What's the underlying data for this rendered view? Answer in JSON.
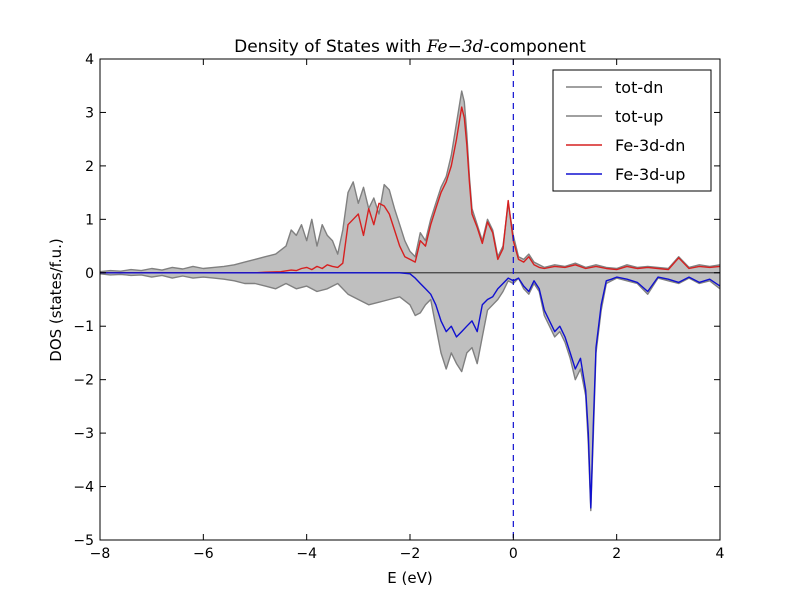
{
  "chart_data": {
    "type": "area",
    "title_prefix": "Density of States with ",
    "title_math": "Fe−3d",
    "title_suffix": "-component",
    "xlabel": "E (eV)",
    "ylabel": "DOS (states/f.u.)",
    "xlim": [
      -8,
      4
    ],
    "ylim": [
      -5,
      4
    ],
    "xticks": [
      -8,
      -6,
      -4,
      -2,
      0,
      2,
      4
    ],
    "yticks": [
      -5,
      -4,
      -3,
      -2,
      -1,
      0,
      1,
      2,
      3,
      4
    ],
    "fermi_level": 0,
    "legend_position": "top-right",
    "grid": false,
    "legend": [
      {
        "label": "tot-dn",
        "color": "#808080"
      },
      {
        "label": "tot-up",
        "color": "#808080"
      },
      {
        "label": "Fe-3d-dn",
        "color": "#d62020"
      },
      {
        "label": "Fe-3d-up",
        "color": "#1010d0"
      }
    ],
    "series": [
      {
        "name": "tot-dn",
        "color": "#808080",
        "fill": "#bfbfbf",
        "x": [
          -8,
          -7.8,
          -7.6,
          -7.4,
          -7.2,
          -7,
          -6.8,
          -6.6,
          -6.4,
          -6.2,
          -6,
          -5.8,
          -5.6,
          -5.4,
          -5.2,
          -5,
          -4.8,
          -4.6,
          -4.4,
          -4.3,
          -4.2,
          -4.1,
          -4,
          -3.9,
          -3.8,
          -3.7,
          -3.6,
          -3.5,
          -3.4,
          -3.3,
          -3.2,
          -3.1,
          -3,
          -2.9,
          -2.8,
          -2.7,
          -2.6,
          -2.5,
          -2.4,
          -2.3,
          -2.2,
          -2.1,
          -2,
          -1.9,
          -1.8,
          -1.7,
          -1.6,
          -1.5,
          -1.4,
          -1.3,
          -1.2,
          -1.1,
          -1,
          -0.95,
          -0.9,
          -0.85,
          -0.8,
          -0.7,
          -0.6,
          -0.5,
          -0.4,
          -0.3,
          -0.2,
          -0.1,
          0,
          0.1,
          0.2,
          0.3,
          0.4,
          0.5,
          0.6,
          0.8,
          1,
          1.2,
          1.4,
          1.6,
          1.8,
          2,
          2.2,
          2.4,
          2.6,
          2.8,
          3,
          3.2,
          3.4,
          3.6,
          3.8,
          4
        ],
        "y": [
          0.02,
          0.04,
          0.03,
          0.06,
          0.04,
          0.08,
          0.05,
          0.1,
          0.07,
          0.12,
          0.08,
          0.1,
          0.12,
          0.15,
          0.2,
          0.25,
          0.3,
          0.35,
          0.5,
          0.8,
          0.7,
          0.9,
          0.6,
          1.0,
          0.5,
          0.9,
          0.7,
          0.6,
          0.35,
          0.8,
          1.5,
          1.7,
          1.3,
          1.6,
          1.2,
          1.4,
          1.1,
          1.65,
          1.55,
          1.2,
          0.9,
          0.6,
          0.4,
          0.3,
          0.75,
          0.6,
          1.0,
          1.3,
          1.6,
          1.8,
          2.2,
          2.8,
          3.4,
          3.2,
          2.6,
          1.8,
          1.2,
          0.9,
          0.6,
          1.0,
          0.8,
          0.3,
          0.5,
          1.3,
          0.7,
          0.3,
          0.25,
          0.35,
          0.2,
          0.15,
          0.1,
          0.15,
          0.12,
          0.18,
          0.1,
          0.15,
          0.1,
          0.08,
          0.15,
          0.1,
          0.12,
          0.1,
          0.08,
          0.3,
          0.1,
          0.15,
          0.12,
          0.15
        ]
      },
      {
        "name": "tot-up",
        "color": "#808080",
        "fill": "#bfbfbf",
        "x": [
          -8,
          -7.8,
          -7.6,
          -7.4,
          -7.2,
          -7,
          -6.8,
          -6.6,
          -6.4,
          -6.2,
          -6,
          -5.8,
          -5.6,
          -5.4,
          -5.2,
          -5,
          -4.8,
          -4.6,
          -4.4,
          -4.2,
          -4,
          -3.8,
          -3.6,
          -3.4,
          -3.2,
          -3,
          -2.8,
          -2.6,
          -2.4,
          -2.2,
          -2,
          -1.9,
          -1.8,
          -1.7,
          -1.6,
          -1.5,
          -1.4,
          -1.3,
          -1.2,
          -1.1,
          -1,
          -0.9,
          -0.8,
          -0.7,
          -0.6,
          -0.5,
          -0.4,
          -0.3,
          -0.2,
          -0.1,
          0,
          0.1,
          0.2,
          0.3,
          0.4,
          0.5,
          0.6,
          0.7,
          0.8,
          0.9,
          1,
          1.1,
          1.2,
          1.3,
          1.4,
          1.45,
          1.5,
          1.55,
          1.6,
          1.7,
          1.8,
          1.9,
          2,
          2.2,
          2.4,
          2.6,
          2.8,
          3,
          3.2,
          3.4,
          3.6,
          3.8,
          4
        ],
        "y": [
          -0.02,
          -0.04,
          -0.03,
          -0.05,
          -0.04,
          -0.08,
          -0.05,
          -0.1,
          -0.06,
          -0.1,
          -0.08,
          -0.1,
          -0.12,
          -0.15,
          -0.2,
          -0.2,
          -0.25,
          -0.3,
          -0.2,
          -0.3,
          -0.25,
          -0.35,
          -0.3,
          -0.2,
          -0.4,
          -0.5,
          -0.6,
          -0.55,
          -0.5,
          -0.45,
          -0.6,
          -0.8,
          -0.75,
          -0.6,
          -0.5,
          -1.0,
          -1.5,
          -1.8,
          -1.5,
          -1.7,
          -1.85,
          -1.5,
          -1.4,
          -1.7,
          -1.2,
          -0.7,
          -0.6,
          -0.5,
          -0.35,
          -0.15,
          -0.2,
          -0.1,
          -0.3,
          -0.4,
          -0.2,
          -0.35,
          -0.8,
          -1.0,
          -1.2,
          -1.1,
          -1.3,
          -1.6,
          -2.0,
          -1.8,
          -2.3,
          -3.2,
          -4.45,
          -3.0,
          -1.5,
          -0.7,
          -0.2,
          -0.15,
          -0.1,
          -0.15,
          -0.2,
          -0.4,
          -0.1,
          -0.15,
          -0.2,
          -0.1,
          -0.2,
          -0.15,
          -0.3
        ]
      },
      {
        "name": "Fe-3d-dn",
        "color": "#d62020",
        "x": [
          -8,
          -5,
          -4.8,
          -4.5,
          -4.3,
          -4.2,
          -4.1,
          -4,
          -3.9,
          -3.8,
          -3.7,
          -3.6,
          -3.5,
          -3.4,
          -3.3,
          -3.2,
          -3.1,
          -3,
          -2.9,
          -2.8,
          -2.7,
          -2.6,
          -2.5,
          -2.4,
          -2.3,
          -2.2,
          -2.1,
          -2,
          -1.9,
          -1.8,
          -1.7,
          -1.6,
          -1.5,
          -1.4,
          -1.3,
          -1.2,
          -1.1,
          -1,
          -0.95,
          -0.9,
          -0.85,
          -0.8,
          -0.7,
          -0.6,
          -0.5,
          -0.4,
          -0.3,
          -0.2,
          -0.1,
          0,
          0.1,
          0.2,
          0.3,
          0.4,
          0.5,
          0.6,
          0.8,
          1,
          1.2,
          1.4,
          1.6,
          1.8,
          2,
          2.2,
          2.4,
          2.6,
          2.8,
          3,
          3.2,
          3.4,
          3.6,
          3.8,
          4
        ],
        "y": [
          0,
          0,
          0.01,
          0.02,
          0.05,
          0.04,
          0.08,
          0.1,
          0.06,
          0.12,
          0.08,
          0.15,
          0.12,
          0.1,
          0.18,
          0.9,
          1.0,
          1.1,
          0.7,
          1.2,
          0.9,
          1.3,
          1.25,
          1.1,
          0.8,
          0.5,
          0.3,
          0.25,
          0.2,
          0.6,
          0.5,
          0.9,
          1.2,
          1.5,
          1.7,
          2.0,
          2.5,
          3.1,
          2.9,
          2.4,
          1.7,
          1.1,
          0.85,
          0.55,
          0.95,
          0.75,
          0.25,
          0.45,
          1.35,
          0.6,
          0.25,
          0.2,
          0.3,
          0.15,
          0.1,
          0.08,
          0.12,
          0.1,
          0.15,
          0.08,
          0.12,
          0.08,
          0.06,
          0.12,
          0.08,
          0.1,
          0.08,
          0.06,
          0.28,
          0.08,
          0.12,
          0.1,
          0.12
        ]
      },
      {
        "name": "Fe-3d-up",
        "color": "#1010d0",
        "x": [
          -8,
          -2.2,
          -2,
          -1.9,
          -1.8,
          -1.7,
          -1.6,
          -1.5,
          -1.4,
          -1.3,
          -1.2,
          -1.1,
          -1,
          -0.9,
          -0.8,
          -0.7,
          -0.6,
          -0.5,
          -0.4,
          -0.3,
          -0.2,
          -0.1,
          0,
          0.1,
          0.2,
          0.3,
          0.4,
          0.5,
          0.6,
          0.7,
          0.8,
          0.9,
          1,
          1.1,
          1.2,
          1.3,
          1.4,
          1.45,
          1.5,
          1.55,
          1.6,
          1.7,
          1.8,
          1.9,
          2,
          2.2,
          2.4,
          2.6,
          2.8,
          3,
          3.2,
          3.4,
          3.6,
          3.8,
          4
        ],
        "y": [
          0,
          0,
          -0.02,
          -0.1,
          -0.2,
          -0.3,
          -0.4,
          -0.6,
          -0.9,
          -1.1,
          -1.0,
          -1.2,
          -1.1,
          -1.0,
          -0.9,
          -1.1,
          -0.6,
          -0.5,
          -0.45,
          -0.3,
          -0.2,
          -0.1,
          -0.15,
          -0.1,
          -0.25,
          -0.35,
          -0.15,
          -0.3,
          -0.7,
          -0.9,
          -1.1,
          -1.0,
          -1.2,
          -1.5,
          -1.8,
          -1.6,
          -2.2,
          -3.0,
          -4.4,
          -2.8,
          -1.4,
          -0.6,
          -0.15,
          -0.12,
          -0.08,
          -0.12,
          -0.18,
          -0.35,
          -0.08,
          -0.12,
          -0.18,
          -0.08,
          -0.18,
          -0.12,
          -0.25
        ]
      }
    ]
  }
}
